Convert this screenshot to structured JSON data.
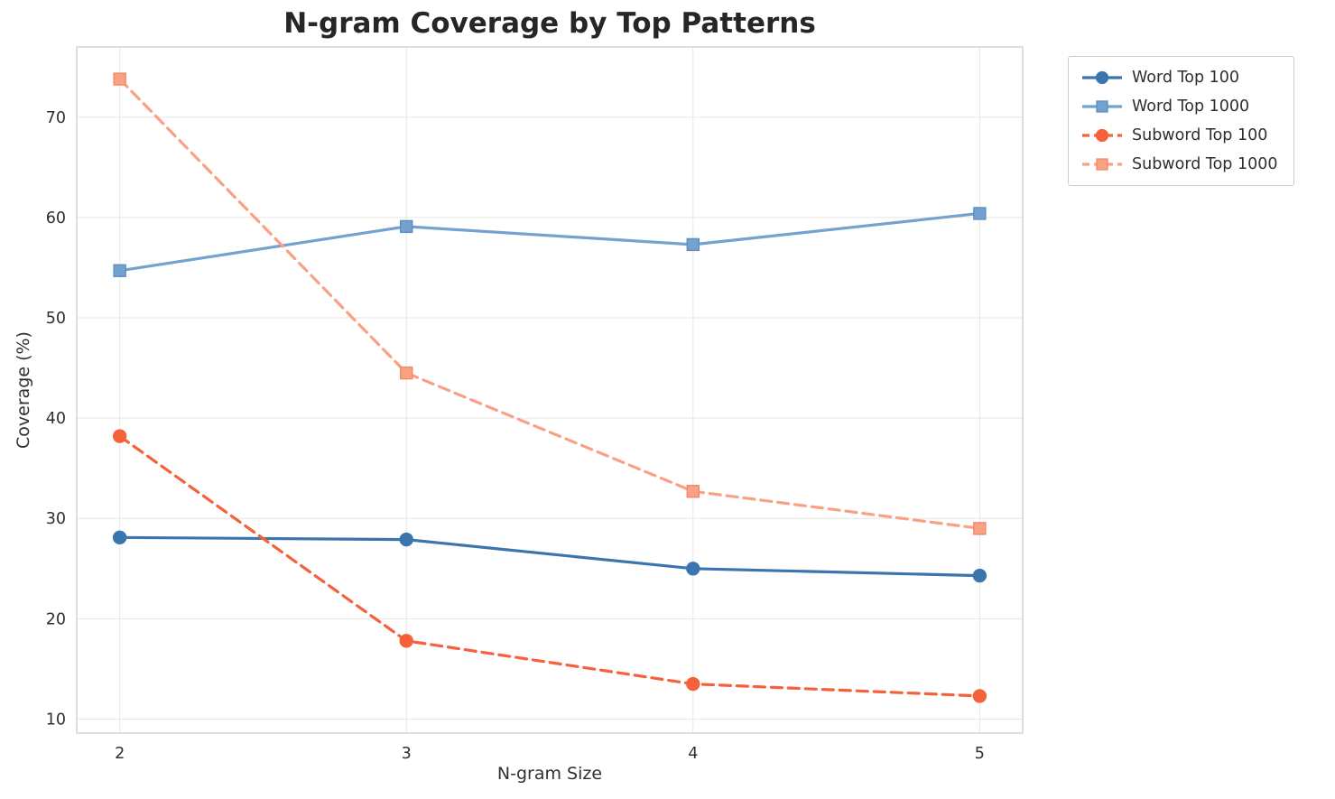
{
  "chart_data": {
    "type": "line",
    "title": "N-gram Coverage by Top Patterns",
    "xlabel": "N-gram Size",
    "ylabel": "Coverage (%)",
    "x": [
      2,
      3,
      4,
      5
    ],
    "xticks": [
      "2",
      "3",
      "4",
      "5"
    ],
    "yticks": [
      10,
      20,
      30,
      40,
      50,
      60,
      70
    ],
    "xlim": [
      1.85,
      5.15
    ],
    "ylim": [
      8.6,
      77.0
    ],
    "grid": true,
    "legend_position": "outside-top-right",
    "colors": {
      "grid": "#e6e6e6",
      "spine": "#cccccc",
      "text": "#2f2f2f"
    },
    "series": [
      {
        "name": "Word Top 100",
        "values": [
          28.1,
          27.9,
          25.0,
          24.3
        ],
        "color": "#3a76ad",
        "edge": "#3a76ad",
        "marker": "circle",
        "dash": "solid"
      },
      {
        "name": "Word Top 1000",
        "values": [
          54.7,
          59.1,
          57.3,
          60.4
        ],
        "color": "#74a1cd",
        "edge": "#5d8fc2",
        "marker": "square",
        "dash": "solid"
      },
      {
        "name": "Subword Top 100",
        "values": [
          38.2,
          17.8,
          13.5,
          12.3
        ],
        "color": "#f4613a",
        "edge": "#f4613a",
        "marker": "circle",
        "dash": "dashed"
      },
      {
        "name": "Subword Top 1000",
        "values": [
          73.8,
          44.5,
          32.7,
          29.0
        ],
        "color": "#f9a085",
        "edge": "#f08a66",
        "marker": "square",
        "dash": "dashed"
      }
    ]
  }
}
